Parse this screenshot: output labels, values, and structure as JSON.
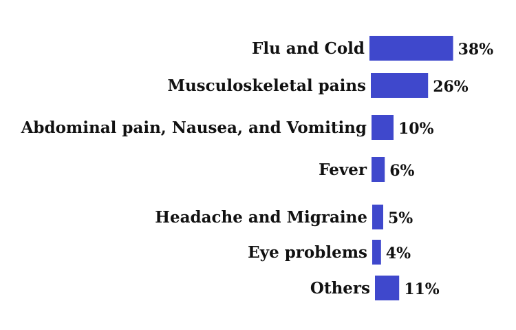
{
  "chart_data": {
    "type": "bar",
    "orientation": "horizontal",
    "categories": [
      "Flu and Cold",
      "Musculoskeletal pains",
      "Abdominal pain, Nausea, and Vomiting",
      "Fever",
      "Headache and Migraine",
      "Eye problems",
      "Others"
    ],
    "values": [
      38,
      26,
      10,
      6,
      5,
      4,
      11
    ],
    "value_labels": [
      "38%",
      "26%",
      "10%",
      "6%",
      "5%",
      "4%",
      "11%"
    ],
    "unit": "%",
    "title": "",
    "xlabel": "",
    "ylabel": "",
    "bar_color": "#3f48cc",
    "grid": false,
    "legend": "none"
  }
}
